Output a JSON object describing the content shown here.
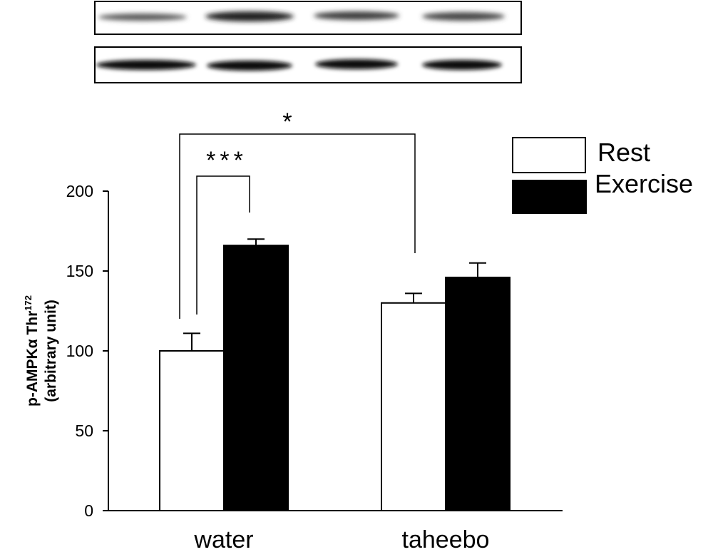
{
  "chart_data": {
    "type": "bar",
    "categories": [
      "water",
      "taheebo"
    ],
    "series": [
      {
        "name": "Rest",
        "values": [
          100,
          130
        ],
        "errors": [
          11,
          6
        ],
        "color": "#ffffff"
      },
      {
        "name": "Exercise",
        "values": [
          166,
          146
        ],
        "errors": [
          4,
          9
        ],
        "color": "#000000"
      }
    ],
    "title": "",
    "xlabel": "",
    "ylabel": {
      "line1_main": "p-AMPKα Thr",
      "line1_sup": "172",
      "line2": "(arbitrary unit)"
    },
    "ylim": [
      0,
      200
    ],
    "yticks": [
      "0",
      "50",
      "100",
      "150",
      "200"
    ],
    "grid": false,
    "legend": {
      "placement": "top-right"
    },
    "annotations": {
      "sig_within_water": "***",
      "sig_rest_between_groups": "*"
    },
    "blots": {
      "rows": 2,
      "lanes": 4
    }
  }
}
